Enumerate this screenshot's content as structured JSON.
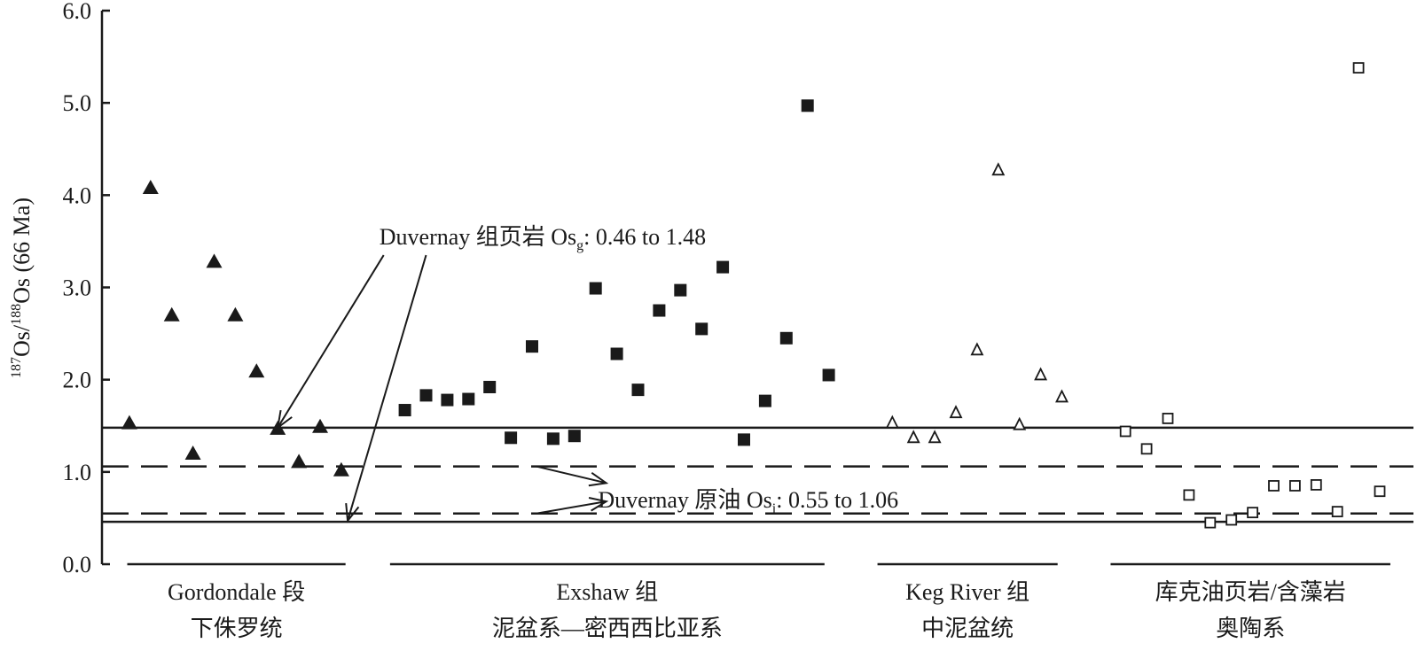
{
  "chart_data": {
    "type": "scatter",
    "title": "",
    "ylabel": {
      "sup1": "187",
      "mid": "Os/",
      "sup2": "188",
      "end": "Os (66 Ma)"
    },
    "ylim": [
      0,
      6
    ],
    "yticks": [
      "0.0",
      "1.0",
      "2.0",
      "3.0",
      "4.0",
      "5.0",
      "6.0"
    ],
    "grid": false,
    "series": [
      {
        "marker": "filled-triangle",
        "group": "Gordondale",
        "points": [
          {
            "i": 1,
            "y": 1.53
          },
          {
            "i": 2,
            "y": 4.08
          },
          {
            "i": 3,
            "y": 2.7
          },
          {
            "i": 4,
            "y": 1.2
          },
          {
            "i": 5,
            "y": 3.28
          },
          {
            "i": 6,
            "y": 2.7
          },
          {
            "i": 7,
            "y": 2.09
          },
          {
            "i": 8,
            "y": 1.47
          },
          {
            "i": 9,
            "y": 1.11
          },
          {
            "i": 10,
            "y": 1.49
          },
          {
            "i": 11,
            "y": 1.02
          }
        ]
      },
      {
        "marker": "filled-square",
        "group": "Exshaw",
        "points": [
          {
            "i": 14,
            "y": 1.67
          },
          {
            "i": 15,
            "y": 1.83
          },
          {
            "i": 16,
            "y": 1.78
          },
          {
            "i": 17,
            "y": 1.79
          },
          {
            "i": 18,
            "y": 1.92
          },
          {
            "i": 19,
            "y": 1.37
          },
          {
            "i": 20,
            "y": 2.36
          },
          {
            "i": 21,
            "y": 1.36
          },
          {
            "i": 22,
            "y": 1.39
          },
          {
            "i": 23,
            "y": 2.99
          },
          {
            "i": 24,
            "y": 2.28
          },
          {
            "i": 25,
            "y": 1.89
          },
          {
            "i": 26,
            "y": 2.75
          },
          {
            "i": 27,
            "y": 2.97
          },
          {
            "i": 28,
            "y": 2.55
          },
          {
            "i": 29,
            "y": 3.22
          },
          {
            "i": 30,
            "y": 1.35
          },
          {
            "i": 31,
            "y": 1.77
          },
          {
            "i": 32,
            "y": 2.45
          },
          {
            "i": 33,
            "y": 4.97
          },
          {
            "i": 34,
            "y": 2.05
          }
        ]
      },
      {
        "marker": "open-triangle",
        "group": "Keg River",
        "points": [
          {
            "i": 37,
            "y": 1.53
          },
          {
            "i": 38,
            "y": 1.37
          },
          {
            "i": 39,
            "y": 1.37
          },
          {
            "i": 40,
            "y": 1.64
          },
          {
            "i": 41,
            "y": 2.32
          },
          {
            "i": 42,
            "y": 4.27
          },
          {
            "i": 43,
            "y": 1.51
          },
          {
            "i": 44,
            "y": 2.05
          },
          {
            "i": 45,
            "y": 1.81
          }
        ]
      },
      {
        "marker": "open-square",
        "group": "Kukersite",
        "points": [
          {
            "i": 48,
            "y": 1.44
          },
          {
            "i": 49,
            "y": 1.25
          },
          {
            "i": 50,
            "y": 1.58
          },
          {
            "i": 51,
            "y": 0.75
          },
          {
            "i": 52,
            "y": 0.45
          },
          {
            "i": 53,
            "y": 0.48
          },
          {
            "i": 54,
            "y": 0.56
          },
          {
            "i": 55,
            "y": 0.85
          },
          {
            "i": 56,
            "y": 0.85
          },
          {
            "i": 57,
            "y": 0.86
          },
          {
            "i": 58,
            "y": 0.57
          },
          {
            "i": 59,
            "y": 5.38
          },
          {
            "i": 60,
            "y": 0.79
          }
        ]
      }
    ],
    "reference_lines": [
      {
        "y": 1.48,
        "style": "solid"
      },
      {
        "y": 0.46,
        "style": "solid"
      },
      {
        "y": 1.06,
        "style": "dashed"
      },
      {
        "y": 0.55,
        "style": "dashed"
      }
    ],
    "annotations": [
      {
        "id": "shale",
        "text_main": "Duvernay 组页岩 Os",
        "text_sub": "g",
        "text_tail": ": 0.46 to 1.48",
        "anchor_i": 20.5,
        "anchor_y": 3.55,
        "arrows": [
          {
            "from_i": 13.0,
            "from_y": 3.35,
            "to_i": 8.0,
            "to_y": 1.48
          },
          {
            "from_i": 15.0,
            "from_y": 3.35,
            "to_i": 11.3,
            "to_y": 0.47
          }
        ]
      },
      {
        "id": "oil",
        "text_main": "Duvernay 原油 Os",
        "text_sub": "i",
        "text_tail": ": 0.55 to 1.06",
        "anchor_i": 30.2,
        "anchor_y": 0.7,
        "arrows": [
          {
            "from_i": 20.2,
            "from_y": 1.06,
            "to_i": 23.5,
            "to_y": 0.88
          },
          {
            "from_i": 20.2,
            "from_y": 0.55,
            "to_i": 23.5,
            "to_y": 0.68
          }
        ]
      }
    ],
    "groups": [
      {
        "name": "Gordondale 段",
        "period": "下侏罗统",
        "start_i": 0.9,
        "end_i": 11.2
      },
      {
        "name": "Exshaw 组",
        "period": "泥盆系—密西西比亚系",
        "start_i": 13.3,
        "end_i": 33.8
      },
      {
        "name": "Keg River 组",
        "period": "中泥盆统",
        "start_i": 36.3,
        "end_i": 44.8
      },
      {
        "name": "库克油页岩/含藻岩",
        "period": "奥陶系",
        "start_i": 47.3,
        "end_i": 60.5
      }
    ]
  }
}
